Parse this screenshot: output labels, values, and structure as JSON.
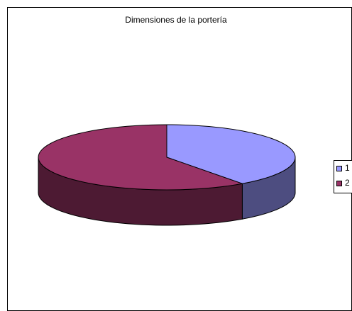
{
  "chart_data": {
    "type": "pie",
    "title": "Dimensiones de la portería",
    "categories": [
      "1",
      "2"
    ],
    "values": [
      40,
      60
    ],
    "colors": [
      "#9999ff",
      "#993366"
    ],
    "legend": "right",
    "3d": true
  }
}
